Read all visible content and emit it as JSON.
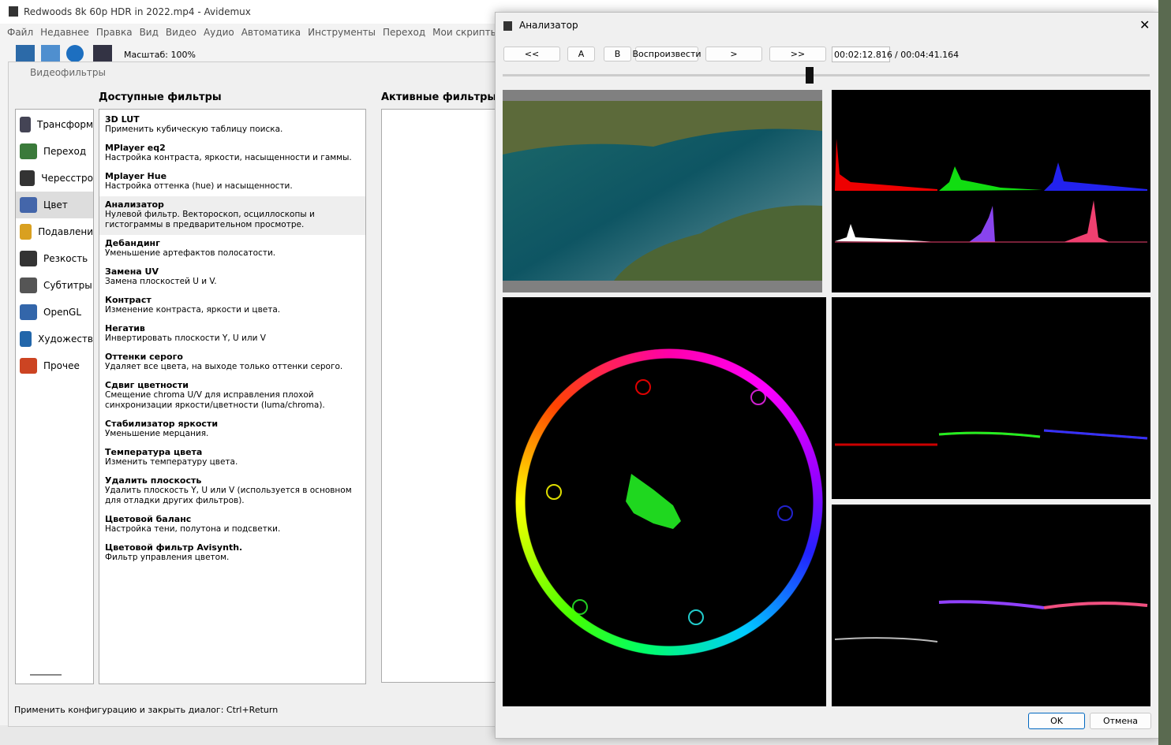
{
  "main_window": {
    "title": "Redwoods 8k 60p HDR in 2022.mp4 - Avidemux",
    "menu": [
      "Файл",
      "Недавнее",
      "Правка",
      "Вид",
      "Видео",
      "Аудио",
      "Автоматика",
      "Инструменты",
      "Переход",
      "Мои скрипты"
    ],
    "zoom": "Масштаб: 100%"
  },
  "filters_dialog": {
    "title": "Видеофильтры",
    "categories": [
      "Трансформ",
      "Переход",
      "Чересстро",
      "Цвет",
      "Подавлени",
      "Резкость",
      "Субтитры",
      "OpenGL",
      "Художеств",
      "Прочее"
    ],
    "available_header": "Доступные фильтры",
    "active_header": "Активные фильтры",
    "filters": [
      {
        "name": "3D LUT",
        "description": "Применить кубическую таблицу поиска."
      },
      {
        "name": "MPlayer eq2",
        "description": "Настройка контраста, яркости, насыщенности и гаммы."
      },
      {
        "name": "Mplayer Hue",
        "description": "Настройка оттенка (hue) и насыщенности."
      },
      {
        "name": "Анализатор",
        "description": "Нулевой фильтр. Вектороскоп, осциллоскопы и гистограммы в предварительном просмотре."
      },
      {
        "name": "Дебандинг",
        "description": "Уменьшение артефактов полосатости."
      },
      {
        "name": "Замена UV",
        "description": "Замена плоскостей U и V."
      },
      {
        "name": "Контраст",
        "description": "Изменение контраста, яркости и цвета."
      },
      {
        "name": "Негатив",
        "description": "Инвертировать плоскости Y, U или V"
      },
      {
        "name": "Оттенки серого",
        "description": "Удаляет все цвета, на выходе только оттенки серого."
      },
      {
        "name": "Сдвиг цветности",
        "description": "Смещение chroma U/V для исправления плохой синхронизации яркости/цветности (luma/chroma)."
      },
      {
        "name": "Стабилизатор яркости",
        "description": "Уменьшение мерцания."
      },
      {
        "name": "Температура цвета",
        "description": "Изменить температуру цвета."
      },
      {
        "name": "Удалить плоскость",
        "description": "Удалить плоскость Y, U или V (используется в основном для отладки других фильтров)."
      },
      {
        "name": "Цветовой баланс",
        "description": "Настройка тени, полутона и подсветки."
      },
      {
        "name": "Цветовой фильтр Avisynth.",
        "description": "Фильтр управления цветом."
      }
    ],
    "status": "Применить конфигурацию и закрыть диалог: Ctrl+Return"
  },
  "analyzer_dialog": {
    "title": "Анализатор",
    "buttons": [
      "<<",
      "A",
      "B",
      "Воспроизвести",
      ">",
      ">>"
    ],
    "current_time": "00:02:12.816",
    "total_time": "/ 00:04:41.164",
    "ok": "OK",
    "cancel": "Отмена"
  }
}
